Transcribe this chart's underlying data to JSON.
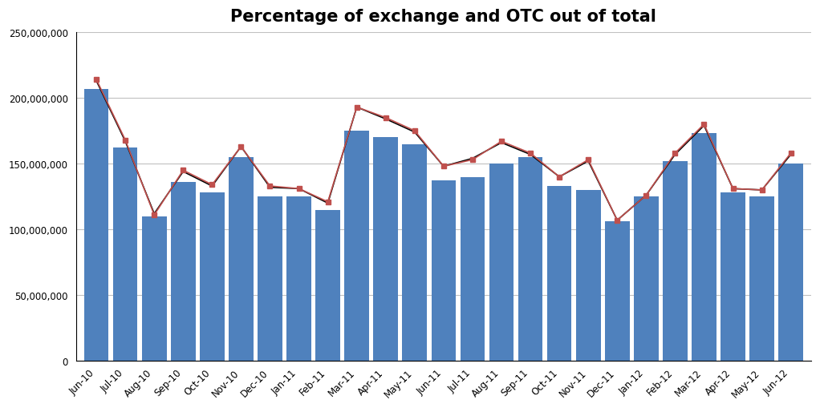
{
  "title": "Percentage of exchange and OTC out of total",
  "categories": [
    "Jun-10",
    "Jul-10",
    "Aug-10",
    "Sep-10",
    "Oct-10",
    "Nov-10",
    "Dec-10",
    "Jan-11",
    "Feb-11",
    "Mar-11",
    "Apr-11",
    "May-11",
    "Jun-11",
    "Jul-11",
    "Aug-11",
    "Sep-11",
    "Oct-11",
    "Nov-11",
    "Dec-11",
    "Jan-12",
    "Feb-12",
    "Mar-12",
    "Apr-12",
    "May-12",
    "Jun-12"
  ],
  "bar_values": [
    207000000,
    162000000,
    110000000,
    136000000,
    128000000,
    155000000,
    125000000,
    125000000,
    115000000,
    175000000,
    170000000,
    165000000,
    137000000,
    140000000,
    150000000,
    155000000,
    133000000,
    130000000,
    106000000,
    125000000,
    152000000,
    173000000,
    128000000,
    125000000,
    150000000
  ],
  "line1_values": [
    214000000,
    168000000,
    111000000,
    145000000,
    134000000,
    163000000,
    133000000,
    131000000,
    121000000,
    193000000,
    185000000,
    175000000,
    148000000,
    153000000,
    167000000,
    158000000,
    140000000,
    153000000,
    107000000,
    126000000,
    158000000,
    180000000,
    131000000,
    130000000,
    158000000
  ],
  "line2_values": [
    213000000,
    167000000,
    112000000,
    144000000,
    133000000,
    163000000,
    132000000,
    131000000,
    120000000,
    193000000,
    184000000,
    174000000,
    148000000,
    154000000,
    166000000,
    157000000,
    140000000,
    152000000,
    107000000,
    126000000,
    157000000,
    179000000,
    131000000,
    130000000,
    157000000
  ],
  "bar_color": "#4F81BD",
  "line1_color": "#C0504D",
  "line2_color": "#000000",
  "ylim": [
    0,
    250000000
  ],
  "yticks": [
    0,
    50000000,
    100000000,
    150000000,
    200000000,
    250000000
  ],
  "ytick_labels": [
    "0",
    "50,000,000",
    "100,000,000",
    "150,000,000",
    "200,000,000",
    "250,000,000"
  ],
  "background_color": "#FFFFFF",
  "grid_color": "#C0C0C0",
  "title_fontsize": 15,
  "tick_fontsize": 8.5
}
